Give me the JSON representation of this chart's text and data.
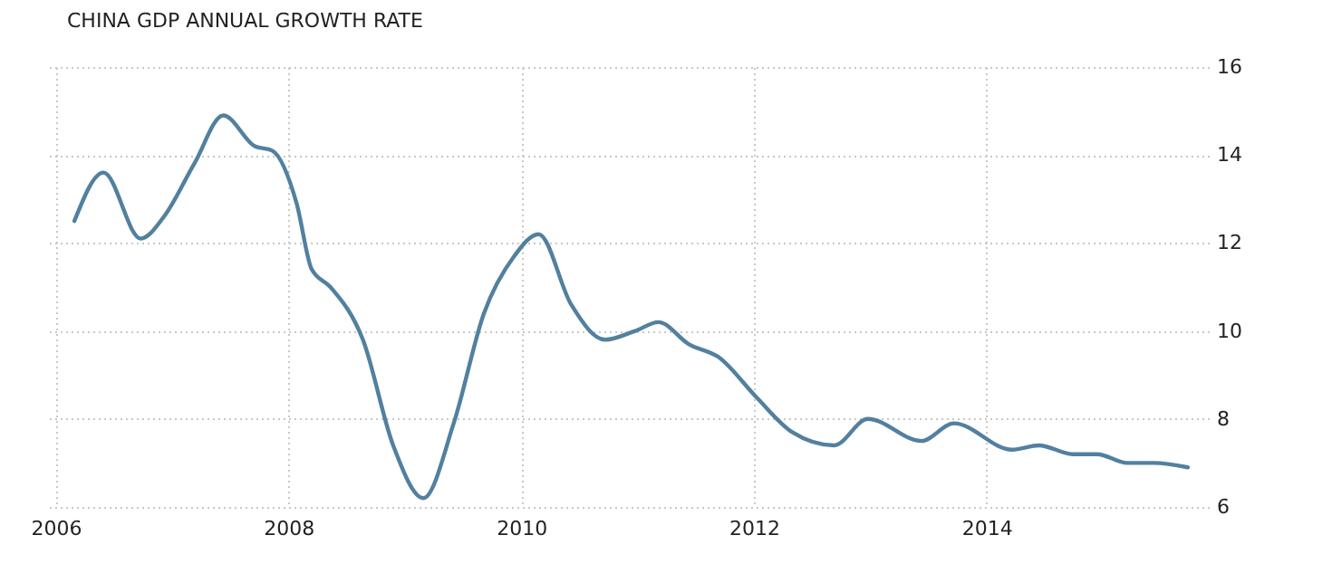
{
  "chart_data": {
    "type": "line",
    "title": "CHINA GDP ANNUAL GROWTH RATE",
    "x": [
      2006.16,
      2006.41,
      2006.73,
      2006.93,
      2007.19,
      2007.44,
      2007.71,
      2007.86,
      2008.07,
      2008.2,
      2008.36,
      2008.64,
      2008.9,
      2009.16,
      2009.42,
      2009.68,
      2009.94,
      2010.15,
      2010.43,
      2010.72,
      2010.98,
      2011.18,
      2011.44,
      2011.7,
      2012.02,
      2012.33,
      2012.69,
      2012.98,
      2013.44,
      2013.72,
      2014.22,
      2014.45,
      2014.74,
      2014.95,
      2015.21,
      2015.44,
      2015.73
    ],
    "series": [
      {
        "color": "#52809f",
        "values": [
          12.5,
          13.6,
          12.1,
          12.6,
          13.8,
          14.9,
          14.2,
          14.1,
          12.9,
          11.4,
          11.0,
          9.8,
          7.4,
          6.2,
          7.9,
          10.4,
          11.7,
          12.2,
          10.6,
          9.8,
          10.0,
          10.2,
          9.7,
          9.4,
          8.5,
          7.7,
          7.4,
          8.0,
          7.5,
          7.9,
          7.3,
          7.4,
          7.2,
          7.2,
          7.0,
          7.0,
          6.9
        ]
      }
    ],
    "xlim": [
      2005.91,
      2015.91
    ],
    "xticks": [
      2006,
      2008,
      2010,
      2012,
      2014
    ],
    "ylim": [
      6,
      16
    ],
    "yticks": [
      6,
      8,
      10,
      12,
      14,
      16
    ],
    "grid": true,
    "marker": "none",
    "line_style": "solid"
  }
}
